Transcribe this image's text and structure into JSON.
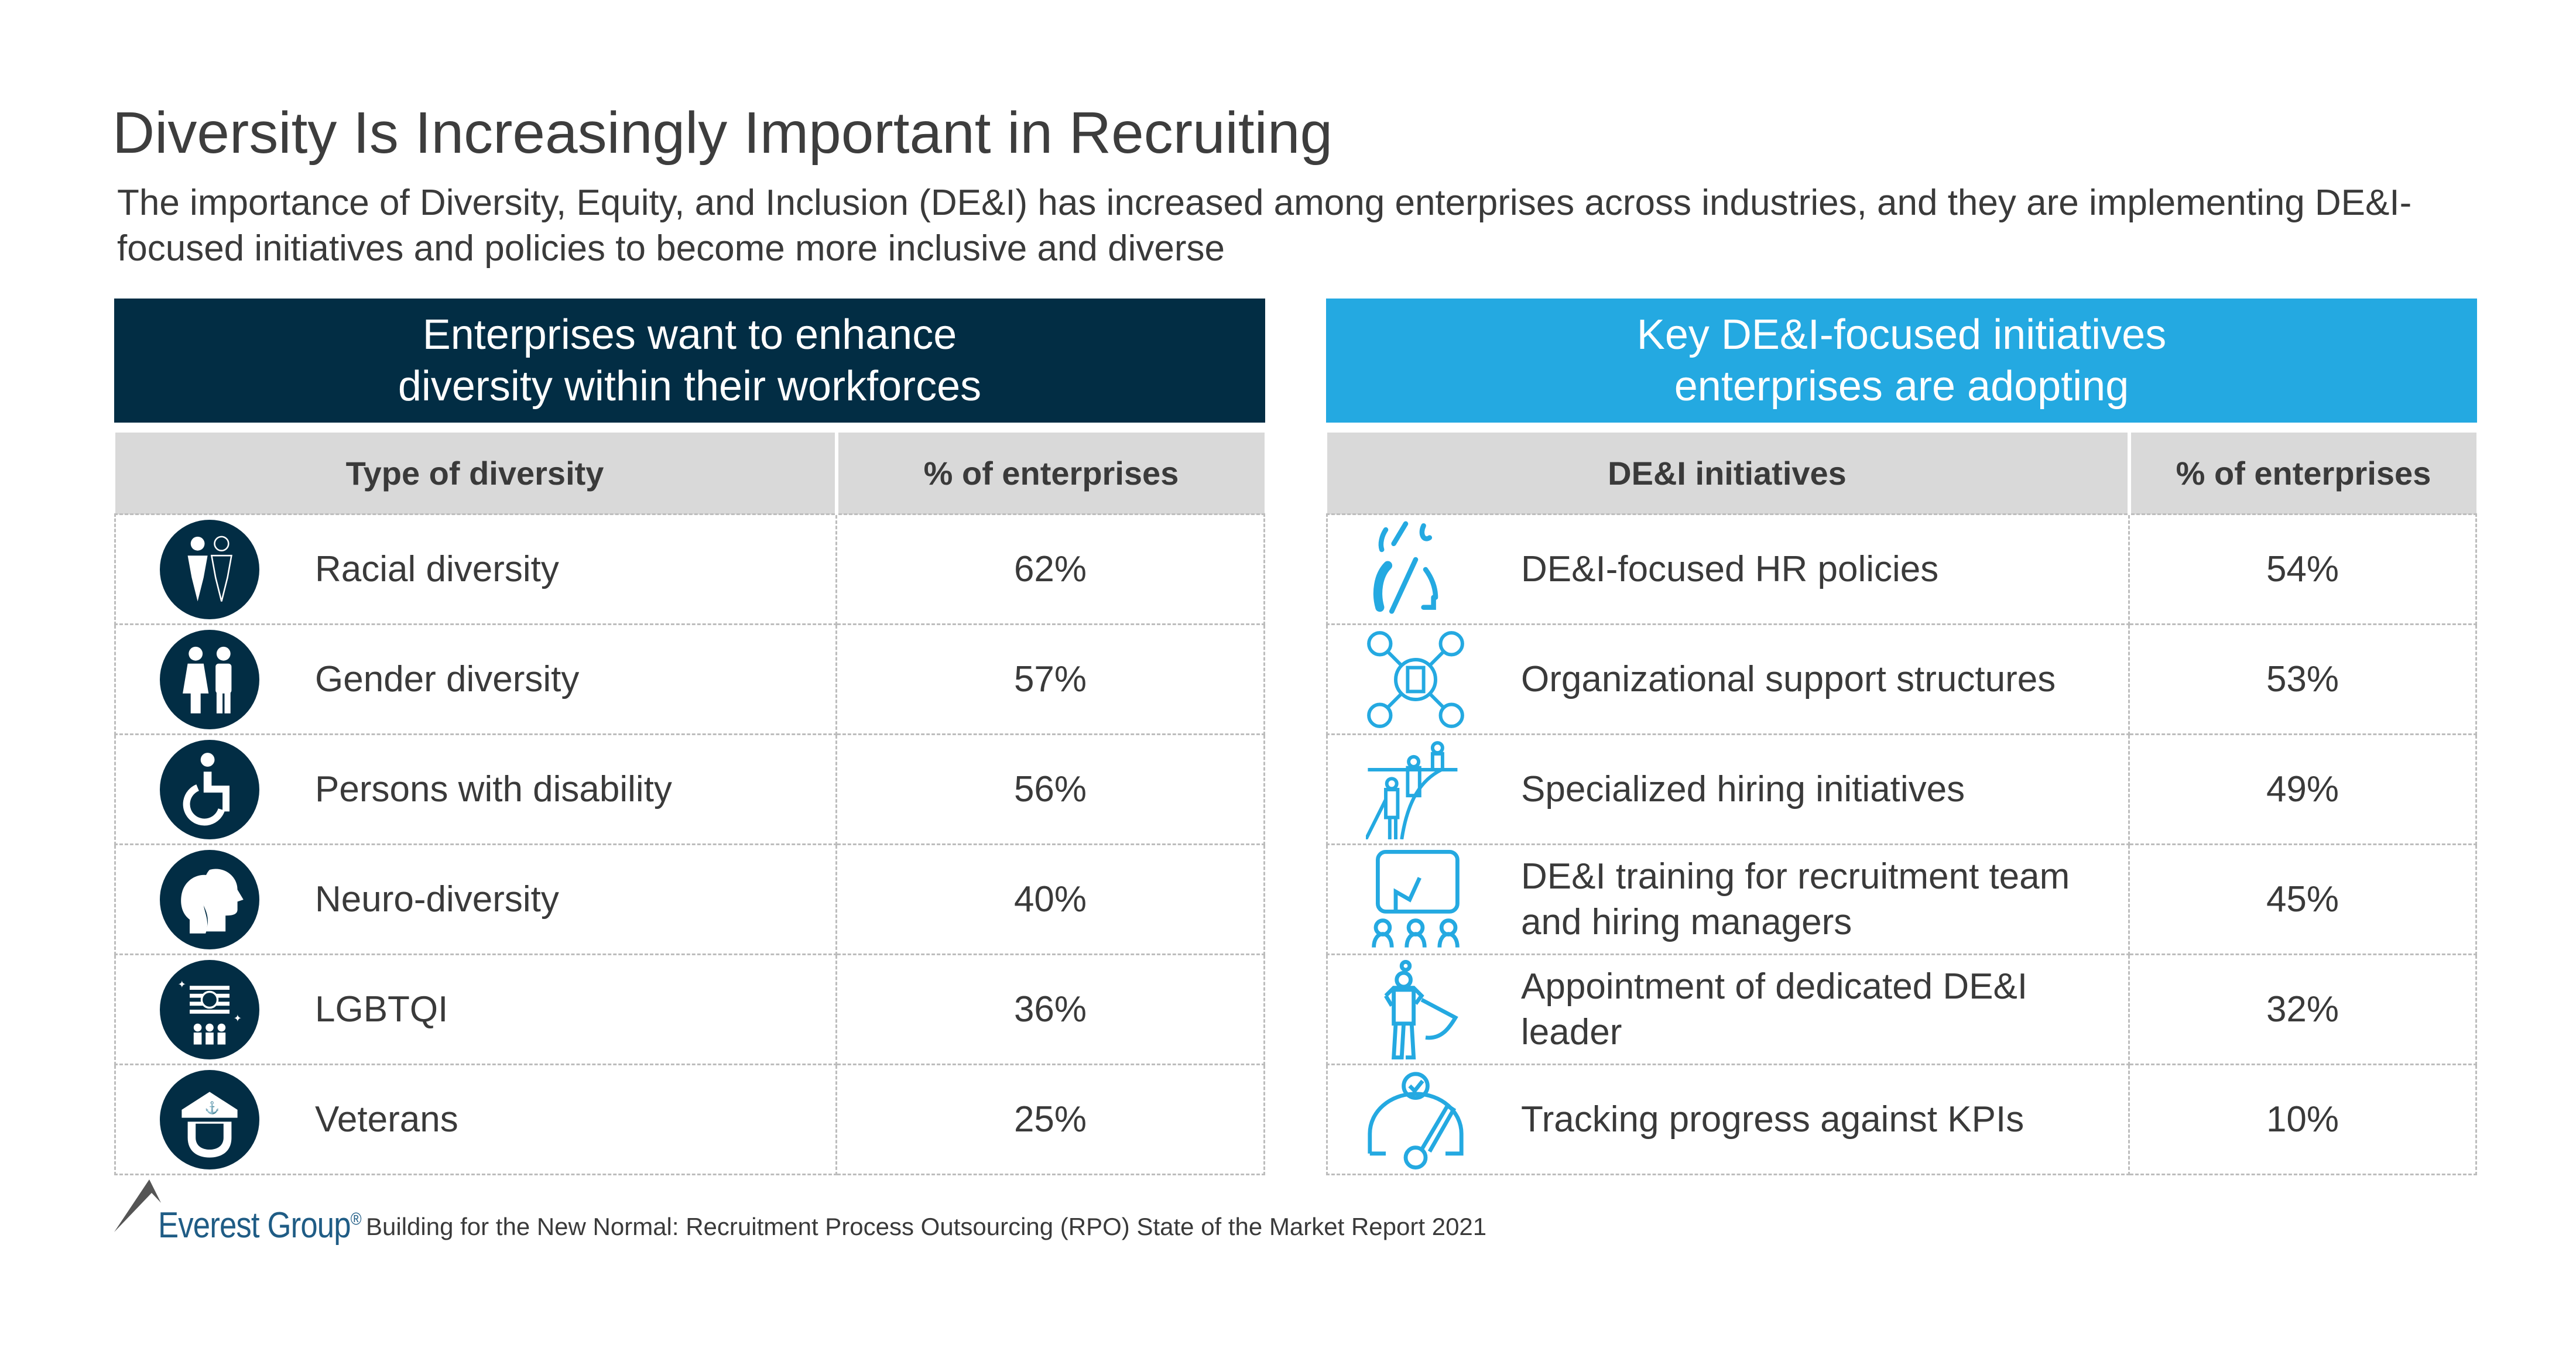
{
  "title": "Diversity Is Increasingly Important in Recruiting",
  "subtitle": "The importance of Diversity, Equity, and Inclusion (DE&I) has increased among enterprises across industries, and they are implementing DE&I-focused initiatives and policies to become more inclusive and diverse",
  "colors": {
    "dark_navy": "#022d44",
    "accent_blue": "#24a9e1",
    "header_gray": "#d9d9d9"
  },
  "left": {
    "banner_line1": "Enterprises want to enhance",
    "banner_line2": "diversity within their workforces",
    "col1": "Type of diversity",
    "col2": "% of enterprises",
    "rows": [
      {
        "label": "Racial diversity",
        "value": "62%",
        "icon": "racial-diversity-icon"
      },
      {
        "label": "Gender diversity",
        "value": "57%",
        "icon": "gender-icon"
      },
      {
        "label": "Persons with disability",
        "value": "56%",
        "icon": "wheelchair-icon"
      },
      {
        "label": "Neuro-diversity",
        "value": "40%",
        "icon": "heads-icon"
      },
      {
        "label": "LGBTQI",
        "value": "36%",
        "icon": "pride-flag-icon"
      },
      {
        "label": "Veterans",
        "value": "25%",
        "icon": "navy-cap-icon"
      }
    ]
  },
  "right": {
    "banner_line1": "Key DE&I-focused initiatives",
    "banner_line2": "enterprises are adopting",
    "col1": "DE&I initiatives",
    "col2": "% of enterprises",
    "rows": [
      {
        "label": "DE&I-focused HR policies",
        "value": "54%",
        "icon": "policy-figure-icon"
      },
      {
        "label": "Organizational support structures",
        "value": "53%",
        "icon": "network-icon"
      },
      {
        "label": "Specialized hiring initiatives",
        "value": "49%",
        "icon": "hiring-ladder-icon"
      },
      {
        "label": "DE&I training for recruitment team and hiring managers",
        "value": "45%",
        "icon": "training-board-icon"
      },
      {
        "label": "Appointment of dedicated DE&I leader",
        "value": "32%",
        "icon": "leader-cape-icon"
      },
      {
        "label": "Tracking progress against KPIs",
        "value": "10%",
        "icon": "gauge-icon"
      }
    ]
  },
  "footer": {
    "brand": "Everest Group",
    "registered": "®",
    "source": "Building for the New Normal: Recruitment Process Outsourcing (RPO) State of the Market Report 2021"
  }
}
